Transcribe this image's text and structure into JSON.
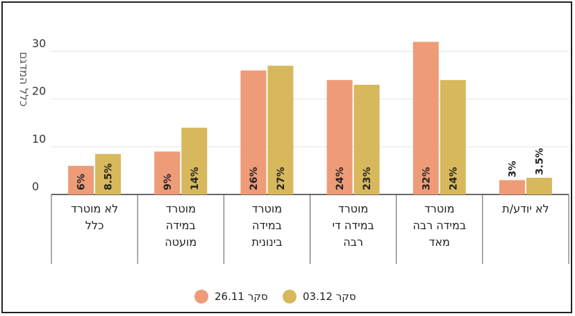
{
  "chart_data": {
    "type": "bar",
    "ylabel": "כלל המדגם",
    "ylim": [
      0,
      34
    ],
    "yticks": [
      0,
      10,
      20,
      30
    ],
    "grid": true,
    "legend_position": "bottom",
    "categories": [
      [
        "לא מוטרד",
        "כלל"
      ],
      [
        "מוטרד",
        "במידה",
        "מועטה"
      ],
      [
        "מוטרד",
        "במידה",
        "בינונית"
      ],
      [
        "מוטרד",
        "במידה די",
        "רבה"
      ],
      [
        "מוטרד",
        "במידה רבה",
        "מאד"
      ],
      [
        "לא יודע/ת"
      ]
    ],
    "series": [
      {
        "name": "סקר 26.11",
        "color": "#EE9B78",
        "values": [
          6,
          9,
          26,
          24,
          32,
          3
        ],
        "labels": [
          "6%",
          "9%",
          "26%",
          "24%",
          "32%",
          "3%"
        ]
      },
      {
        "name": "סקר 03.12",
        "color": "#D8B85C",
        "values": [
          8.5,
          14,
          27,
          23,
          24,
          3.5
        ],
        "labels": [
          "8.5%",
          "14%",
          "27%",
          "23%",
          "24%",
          "3.5%"
        ]
      }
    ]
  }
}
